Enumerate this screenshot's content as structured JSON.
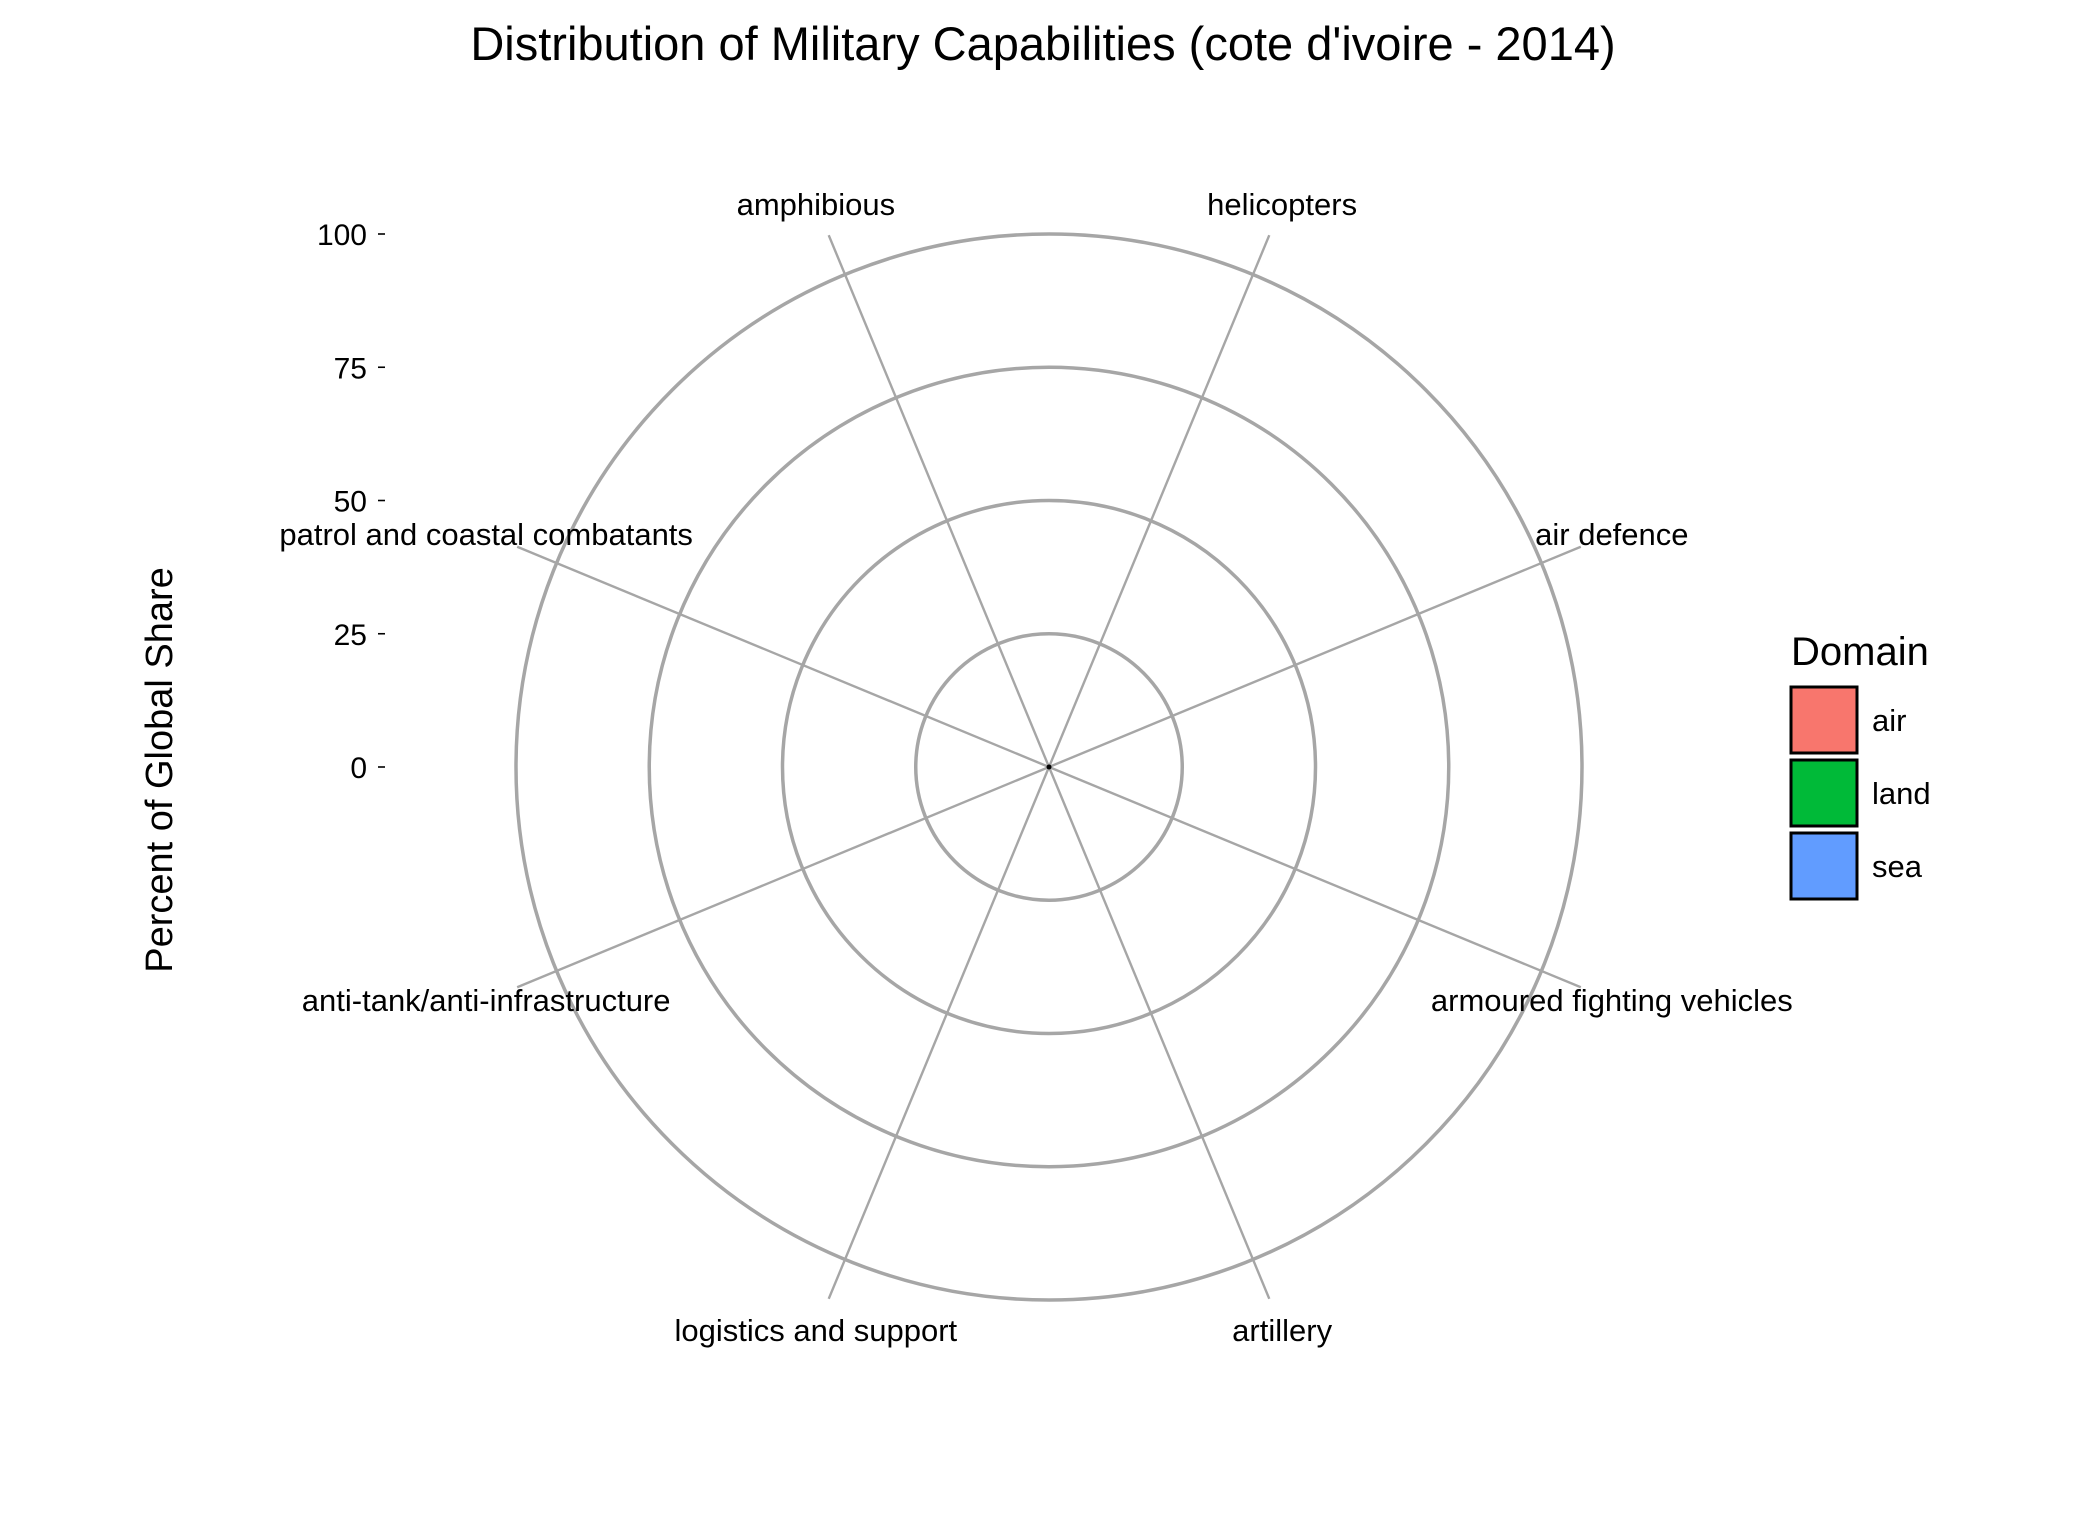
{
  "chart_data": {
    "type": "radar",
    "title": "Distribution of Military Capabilities (cote d'ivoire - 2014)",
    "xlabel": "",
    "ylabel": "Percent of Global Share",
    "ylim": [
      0,
      100
    ],
    "y_ticks": [
      0,
      25,
      50,
      75,
      100
    ],
    "grid": true,
    "legend_position": "right",
    "categories": [
      "helicopters",
      "air defence",
      "armoured fighting vehicles",
      "artillery",
      "logistics and support",
      "anti-tank/anti-infrastructure",
      "patrol and coastal combatants",
      "amphibious"
    ],
    "legend": {
      "title": "Domain",
      "items": [
        {
          "label": "air",
          "color": "#F8766D"
        },
        {
          "label": "land",
          "color": "#00BA38"
        },
        {
          "label": "sea",
          "color": "#619CFF"
        }
      ]
    },
    "series": [
      {
        "domain": "air",
        "color": "#F8766D",
        "values": {
          "helicopters": 0,
          "air defence": 0
        }
      },
      {
        "domain": "land",
        "color": "#00BA38",
        "values": {
          "armoured fighting vehicles": 0,
          "artillery": 0,
          "logistics and support": 0,
          "anti-tank/anti-infrastructure": 0
        }
      },
      {
        "domain": "sea",
        "color": "#619CFF",
        "values": {
          "patrol and coastal combatants": 0,
          "amphibious": 0
        }
      }
    ],
    "colors": {
      "grid": "#a6a6a6",
      "text": "#000000",
      "legend_border": "#000000"
    }
  }
}
